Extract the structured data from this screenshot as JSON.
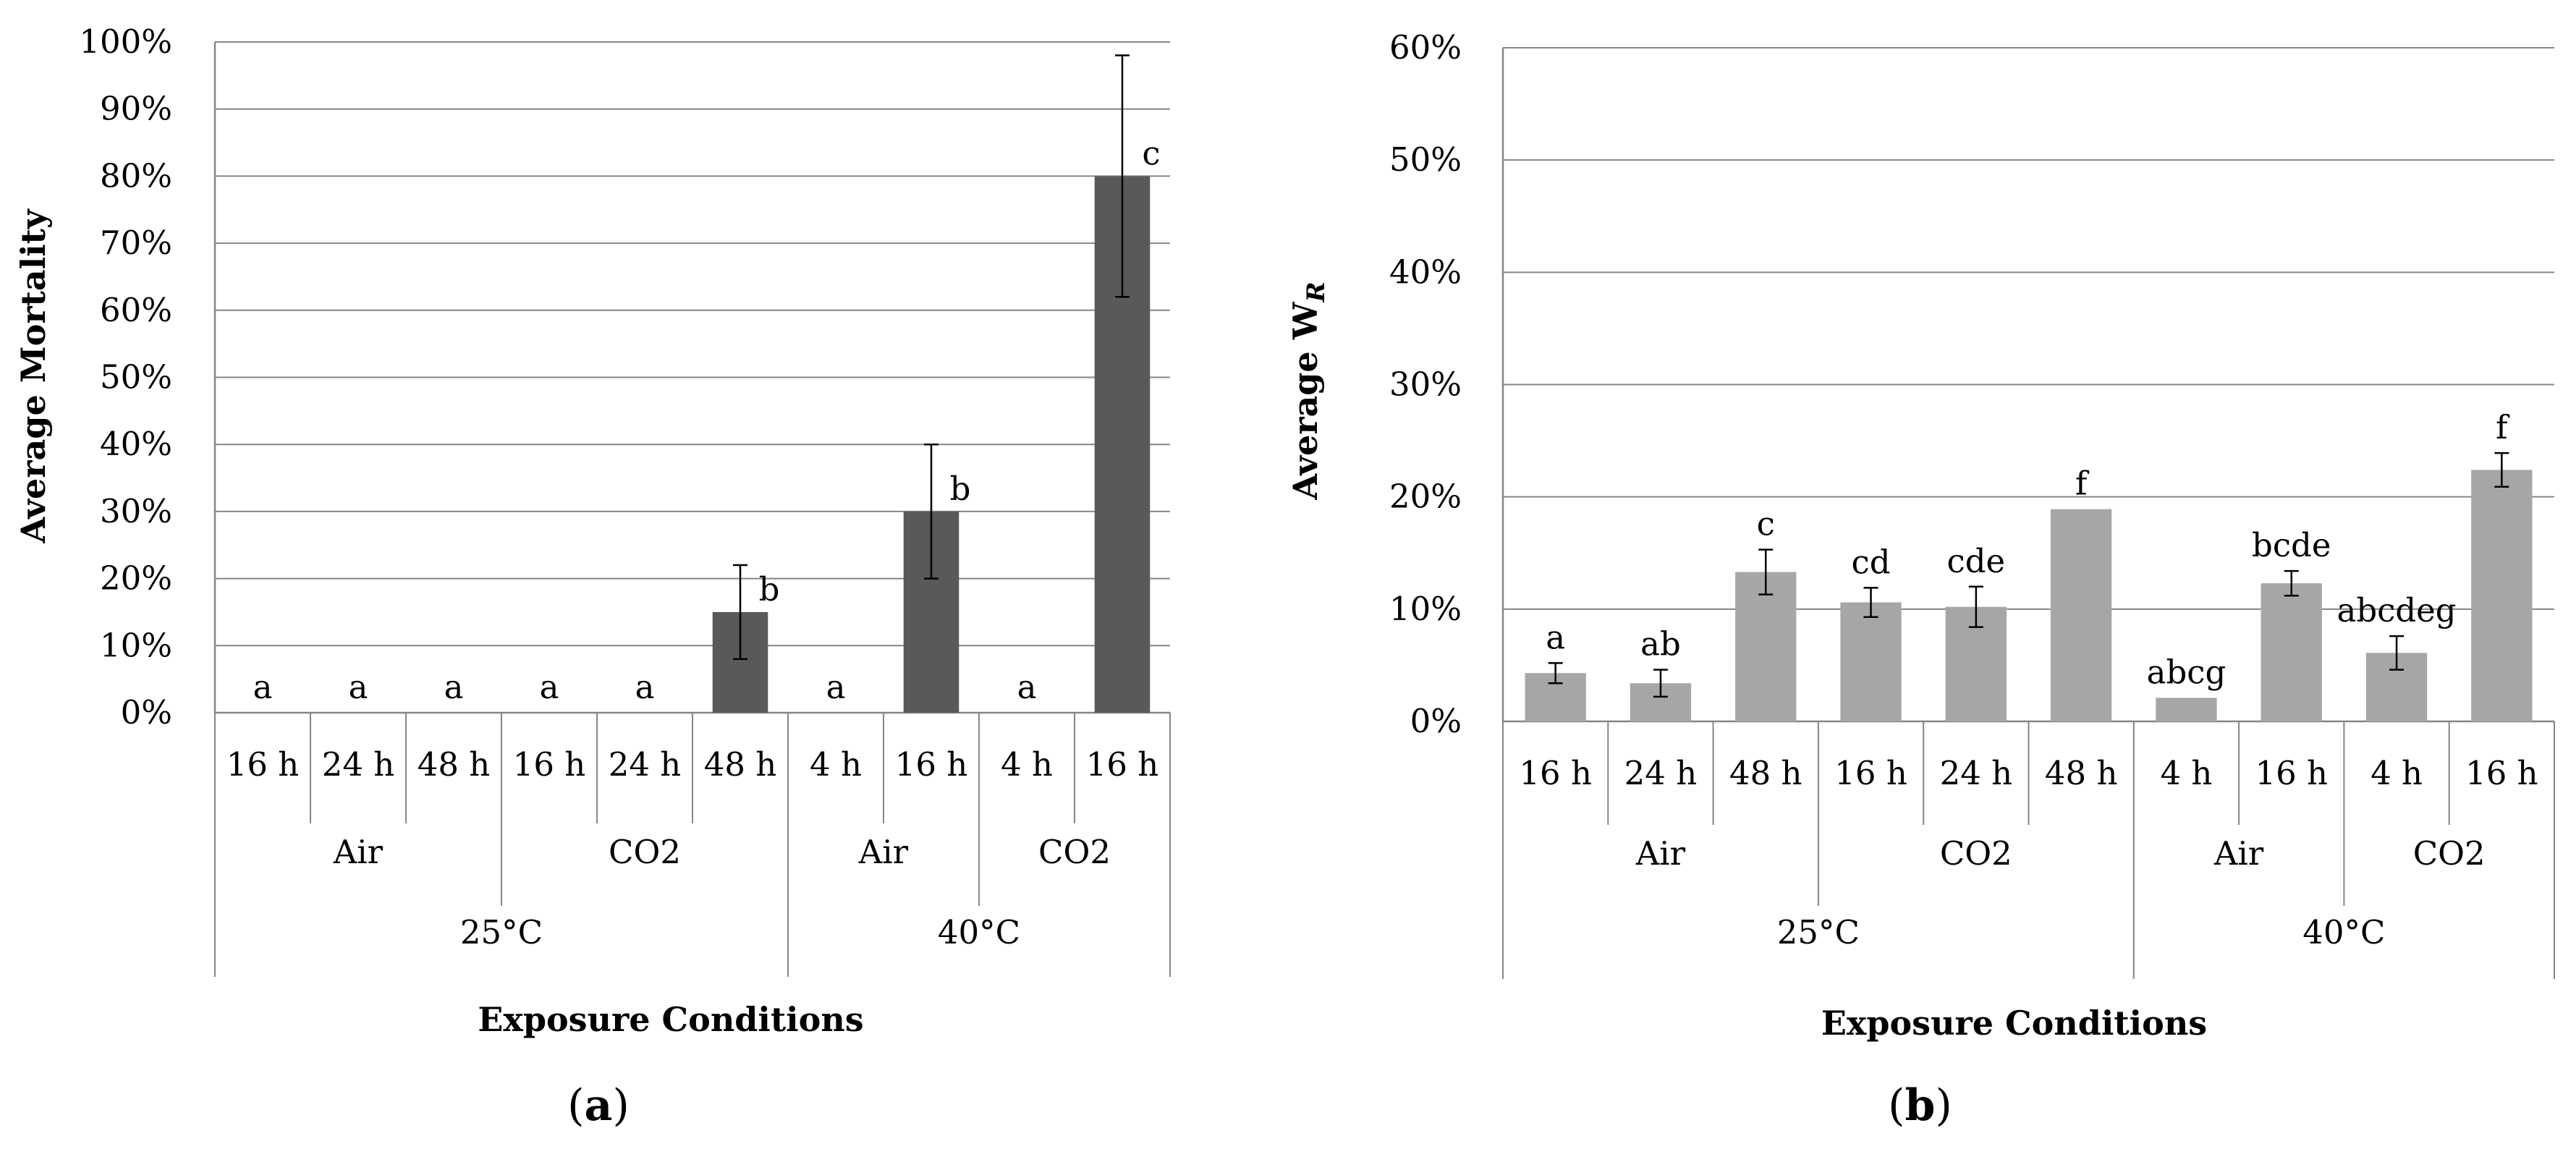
{
  "colors": {
    "bar_a": "#595959",
    "bar_b": "#a6a6a6",
    "grid": "#868686",
    "axis": "#868686",
    "error": "#000000"
  },
  "chart_data": [
    {
      "type": "bar",
      "panel_label": "a",
      "title": "",
      "xlabel": "Exposure Conditions",
      "ylabel": "Average Mortality",
      "ylabel_sub": "",
      "ylim": [
        0,
        100
      ],
      "ytick_step": 10,
      "yticks": [
        "0%",
        "10%",
        "20%",
        "30%",
        "40%",
        "50%",
        "60%",
        "70%",
        "80%",
        "90%",
        "100%"
      ],
      "grid": true,
      "categories": [
        "16 h",
        "24 h",
        "48 h",
        "16 h",
        "24 h",
        "48 h",
        "4 h",
        "16 h",
        "4 h",
        "16 h"
      ],
      "values": [
        0,
        0,
        0,
        0,
        0,
        15,
        0,
        30,
        0,
        80
      ],
      "errors": [
        0,
        0,
        0,
        0,
        0,
        7,
        0,
        10,
        0,
        18
      ],
      "significance": [
        "a",
        "a",
        "a",
        "a",
        "a",
        "b",
        "a",
        "b",
        "a",
        "c"
      ],
      "groups_level1": [
        {
          "label": "Air",
          "span": 3
        },
        {
          "label": "CO2",
          "span": 3
        },
        {
          "label": "Air",
          "span": 2
        },
        {
          "label": "CO2",
          "span": 2
        }
      ],
      "groups_level2": [
        {
          "label": "25°C",
          "span": 6
        },
        {
          "label": "40°C",
          "span": 4
        }
      ]
    },
    {
      "type": "bar",
      "panel_label": "b",
      "title": "",
      "xlabel": "Exposure Conditions",
      "ylabel": "Average W",
      "ylabel_sub": "R",
      "ylim": [
        0,
        60
      ],
      "ytick_step": 10,
      "yticks": [
        "0%",
        "10%",
        "20%",
        "30%",
        "40%",
        "50%",
        "60%"
      ],
      "grid": true,
      "categories": [
        "16 h",
        "24 h",
        "48 h",
        "16 h",
        "24 h",
        "48 h",
        "4 h",
        "16 h",
        "4 h",
        "16 h"
      ],
      "values": [
        4.3,
        3.4,
        13.3,
        10.6,
        10.2,
        18.9,
        2.1,
        12.3,
        6.1,
        22.4
      ],
      "errors": [
        0.9,
        1.2,
        2.0,
        1.3,
        1.8,
        0,
        0,
        1.1,
        1.5,
        1.5
      ],
      "significance": [
        "a",
        "ab",
        "c",
        "cd",
        "cde",
        "f",
        "abcg",
        "bcde",
        "abcdeg",
        "f"
      ],
      "groups_level1": [
        {
          "label": "Air",
          "span": 3
        },
        {
          "label": "CO2",
          "span": 3
        },
        {
          "label": "Air",
          "span": 2
        },
        {
          "label": "CO2",
          "span": 2
        }
      ],
      "groups_level2": [
        {
          "label": "25°C",
          "span": 6
        },
        {
          "label": "40°C",
          "span": 4
        }
      ]
    }
  ]
}
